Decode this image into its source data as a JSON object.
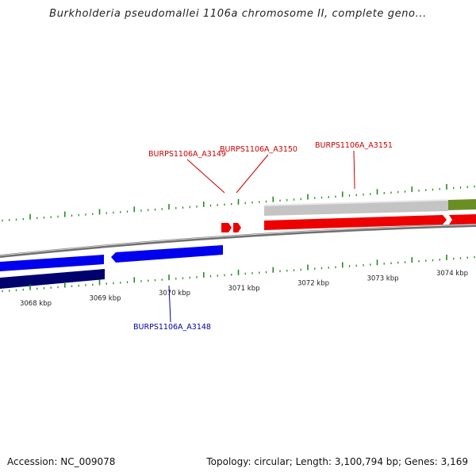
{
  "title": "Burkholderia pseudomallei 1106a chromosome II, complete geno...",
  "footer": {
    "accession": "Accession: NC_009078",
    "summary": "Topology: circular; Length: 3,100,794 bp; Genes: 3,169"
  },
  "scale": {
    "unit": "kbp",
    "labels": [
      "3068 kbp",
      "3069 kbp",
      "3070 kbp",
      "3071 kbp",
      "3072 kbp",
      "3073 kbp",
      "3074 kbp"
    ]
  },
  "genes": [
    {
      "name": "BURPS1106A_A3148",
      "strand": "reverse",
      "color": "#0000cc"
    },
    {
      "name": "BURPS1106A_A3149",
      "strand": "forward",
      "color": "#dd0000"
    },
    {
      "name": "BURPS1106A_A3150",
      "strand": "forward",
      "color": "#dd0000"
    },
    {
      "name": "BURPS1106A_A3151",
      "strand": "forward",
      "color": "#dd0000"
    }
  ],
  "colors": {
    "forward_cds": "#ee0000",
    "reverse_cds": "#0000ee",
    "reverse_dark": "#000080",
    "forward_grey": "#c0c0c0",
    "olive": "#6b8e23",
    "ticks": "#228b22",
    "backbone": "#808080",
    "forward_label": "#cc0000",
    "reverse_label": "#0000aa"
  }
}
